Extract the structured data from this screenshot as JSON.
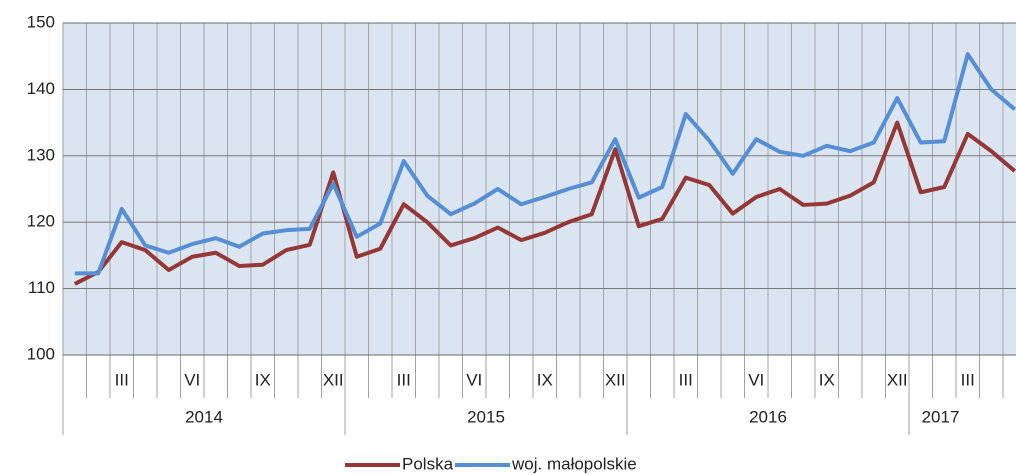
{
  "chart_data": {
    "type": "line",
    "categories": [
      null,
      null,
      "III",
      null,
      null,
      "VI",
      null,
      null,
      "IX",
      null,
      null,
      "XII",
      null,
      null,
      "III",
      null,
      null,
      "VI",
      null,
      null,
      "IX",
      null,
      null,
      "XII",
      null,
      null,
      "III",
      null,
      null,
      "VI",
      null,
      null,
      "IX",
      null,
      null,
      "XII",
      null,
      null,
      "III",
      null,
      null
    ],
    "years": [
      "2014",
      "2015",
      "2016",
      "2017"
    ],
    "series": [
      {
        "name": "Polska",
        "color": "#953735",
        "values": [
          110.7,
          112.5,
          117,
          115.8,
          112.8,
          114.8,
          115.4,
          113.4,
          113.6,
          115.8,
          116.6,
          127.5,
          114.8,
          116,
          122.7,
          120,
          116.5,
          117.6,
          119.2,
          117.3,
          118.4,
          120,
          121.2,
          131,
          119.4,
          120.5,
          126.7,
          125.6,
          121.3,
          123.8,
          125,
          122.6,
          122.8,
          124,
          126,
          135,
          124.5,
          125.3,
          133.3,
          130.7,
          127.7
        ]
      },
      {
        "name": "woj. małopolskie",
        "color": "#558ed5",
        "values": [
          112.3,
          112.3,
          122,
          116.5,
          115.4,
          116.7,
          117.6,
          116.3,
          118.3,
          118.8,
          119,
          125.8,
          117.8,
          119.8,
          129.2,
          124,
          121.2,
          122.8,
          125,
          122.7,
          123.8,
          125,
          126,
          132.5,
          123.7,
          125.3,
          136.3,
          132.3,
          127.3,
          132.5,
          130.6,
          130,
          131.5,
          130.7,
          132,
          138.7,
          132,
          132.2,
          145.3,
          140,
          137
        ]
      }
    ],
    "ylim": [
      100,
      150
    ],
    "yticks": [
      100,
      110,
      120,
      130,
      140,
      150
    ],
    "grid": true
  }
}
